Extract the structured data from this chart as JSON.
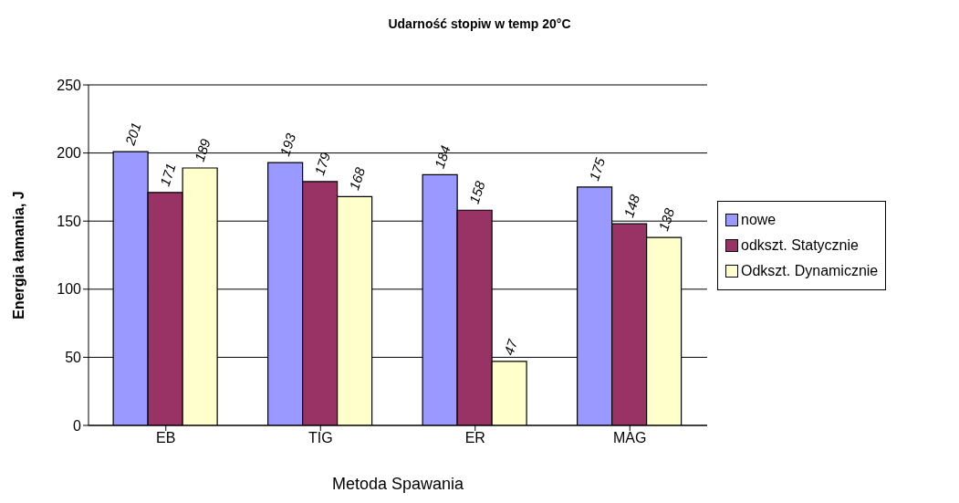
{
  "chart_data": {
    "type": "bar",
    "title": "Udarność stopiw w temp 20°C",
    "xlabel": "Metoda Spawania",
    "ylabel": "Energia łamania, J",
    "categories": [
      "EB",
      "TIG",
      "ER",
      "MAG"
    ],
    "series": [
      {
        "name": "nowe",
        "color": "#9999ff",
        "values": [
          201,
          193,
          184,
          175
        ]
      },
      {
        "name": "odkszt. Statycznie",
        "color": "#993366",
        "values": [
          171,
          179,
          158,
          148
        ]
      },
      {
        "name": "Odkszt. Dynamicznie",
        "color": "#ffffcc",
        "values": [
          189,
          168,
          47,
          138
        ]
      }
    ],
    "ylim": [
      0,
      250
    ],
    "yticks": [
      0,
      50,
      100,
      150,
      200,
      250
    ],
    "grid": "y",
    "legend": "right",
    "data_labels": true
  }
}
